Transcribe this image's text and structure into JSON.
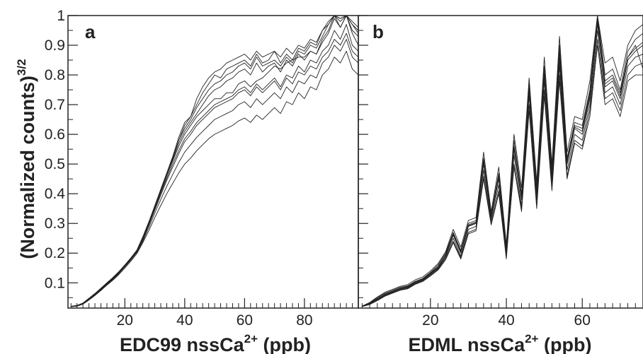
{
  "chart_data": [
    {
      "type": "line",
      "panel_label": "a",
      "xlabel_main": "EDC99 nssCa",
      "xlabel_sup": "2+",
      "xlabel_tail": " (ppb)",
      "ylabel_main": "(Normalized counts)",
      "ylabel_sup": "3/2",
      "xlim": [
        1,
        98
      ],
      "ylim": [
        0.015,
        1.0
      ],
      "x_ticks": [
        20,
        40,
        60,
        80
      ],
      "y_ticks": [
        0.1,
        0.2,
        0.3,
        0.4,
        0.5,
        0.6,
        0.7,
        0.8,
        0.9,
        1
      ],
      "grid": false,
      "legend": "none",
      "line_color": "#222222",
      "x": [
        2,
        4,
        6,
        8,
        10,
        12,
        14,
        16,
        18,
        20,
        22,
        24,
        26,
        28,
        30,
        32,
        34,
        36,
        38,
        40,
        42,
        44,
        46,
        48,
        50,
        52,
        54,
        56,
        58,
        60,
        62,
        64,
        66,
        68,
        70,
        72,
        74,
        76,
        78,
        80,
        82,
        84,
        86,
        88,
        90,
        92,
        94,
        96,
        98
      ],
      "series": [
        {
          "values": [
            0.02,
            0.022,
            0.03,
            0.045,
            0.06,
            0.077,
            0.095,
            0.112,
            0.132,
            0.155,
            0.178,
            0.203,
            0.245,
            0.295,
            0.35,
            0.405,
            0.46,
            0.51,
            0.56,
            0.6,
            0.63,
            0.66,
            0.68,
            0.7,
            0.72,
            0.72,
            0.74,
            0.74,
            0.77,
            0.78,
            0.76,
            0.78,
            0.79,
            0.81,
            0.83,
            0.82,
            0.84,
            0.85,
            0.86,
            0.86,
            0.88,
            0.87,
            0.92,
            0.95,
            1.0,
            0.96,
            1.0,
            0.94,
            0.9
          ]
        },
        {
          "values": [
            0.02,
            0.022,
            0.03,
            0.046,
            0.062,
            0.08,
            0.098,
            0.115,
            0.135,
            0.158,
            0.182,
            0.207,
            0.25,
            0.3,
            0.355,
            0.41,
            0.465,
            0.52,
            0.58,
            0.62,
            0.65,
            0.69,
            0.72,
            0.75,
            0.77,
            0.78,
            0.8,
            0.81,
            0.83,
            0.84,
            0.82,
            0.86,
            0.83,
            0.84,
            0.85,
            0.83,
            0.86,
            0.84,
            0.88,
            0.87,
            0.9,
            0.89,
            0.93,
            0.97,
            1.0,
            0.98,
            1.0,
            0.97,
            0.95
          ]
        },
        {
          "values": [
            0.021,
            0.024,
            0.032,
            0.048,
            0.064,
            0.082,
            0.1,
            0.118,
            0.138,
            0.16,
            0.184,
            0.21,
            0.255,
            0.305,
            0.36,
            0.415,
            0.47,
            0.525,
            0.59,
            0.64,
            0.66,
            0.7,
            0.74,
            0.77,
            0.8,
            0.79,
            0.82,
            0.83,
            0.84,
            0.85,
            0.83,
            0.87,
            0.84,
            0.85,
            0.88,
            0.84,
            0.87,
            0.85,
            0.89,
            0.88,
            0.91,
            0.9,
            0.95,
            0.98,
            1.0,
            0.99,
            1.0,
            0.98,
            0.96
          ]
        },
        {
          "values": [
            0.02,
            0.023,
            0.031,
            0.047,
            0.063,
            0.081,
            0.099,
            0.116,
            0.136,
            0.159,
            0.183,
            0.208,
            0.252,
            0.302,
            0.357,
            0.412,
            0.467,
            0.515,
            0.57,
            0.61,
            0.64,
            0.67,
            0.7,
            0.73,
            0.75,
            0.76,
            0.78,
            0.79,
            0.81,
            0.82,
            0.8,
            0.84,
            0.81,
            0.83,
            0.84,
            0.81,
            0.85,
            0.83,
            0.87,
            0.85,
            0.88,
            0.87,
            0.91,
            0.94,
            0.99,
            0.96,
            1.0,
            0.95,
            0.93
          ]
        },
        {
          "values": [
            0.02,
            0.022,
            0.03,
            0.045,
            0.061,
            0.079,
            0.097,
            0.114,
            0.134,
            0.157,
            0.18,
            0.205,
            0.247,
            0.297,
            0.35,
            0.402,
            0.452,
            0.5,
            0.545,
            0.585,
            0.61,
            0.64,
            0.66,
            0.68,
            0.7,
            0.71,
            0.72,
            0.73,
            0.75,
            0.76,
            0.74,
            0.77,
            0.75,
            0.77,
            0.79,
            0.76,
            0.8,
            0.79,
            0.83,
            0.81,
            0.85,
            0.84,
            0.88,
            0.9,
            0.95,
            0.92,
            0.97,
            0.9,
            0.88
          ]
        },
        {
          "values": [
            0.02,
            0.022,
            0.029,
            0.044,
            0.059,
            0.076,
            0.094,
            0.111,
            0.131,
            0.154,
            0.177,
            0.202,
            0.24,
            0.285,
            0.335,
            0.38,
            0.425,
            0.465,
            0.505,
            0.54,
            0.565,
            0.59,
            0.61,
            0.63,
            0.65,
            0.66,
            0.67,
            0.68,
            0.7,
            0.71,
            0.69,
            0.72,
            0.7,
            0.72,
            0.74,
            0.72,
            0.76,
            0.74,
            0.78,
            0.77,
            0.8,
            0.79,
            0.84,
            0.86,
            0.9,
            0.88,
            0.92,
            0.86,
            0.84
          ]
        },
        {
          "values": [
            0.02,
            0.021,
            0.028,
            0.042,
            0.057,
            0.074,
            0.092,
            0.109,
            0.128,
            0.15,
            0.173,
            0.198,
            0.235,
            0.275,
            0.32,
            0.36,
            0.4,
            0.435,
            0.47,
            0.5,
            0.52,
            0.545,
            0.565,
            0.585,
            0.6,
            0.61,
            0.62,
            0.63,
            0.645,
            0.655,
            0.64,
            0.665,
            0.65,
            0.67,
            0.69,
            0.67,
            0.71,
            0.7,
            0.74,
            0.72,
            0.76,
            0.75,
            0.8,
            0.82,
            0.86,
            0.84,
            0.88,
            0.82,
            0.8
          ]
        },
        {
          "values": [
            0.021,
            0.023,
            0.031,
            0.047,
            0.063,
            0.081,
            0.1,
            0.117,
            0.137,
            0.16,
            0.184,
            0.209,
            0.253,
            0.303,
            0.358,
            0.413,
            0.468,
            0.52,
            0.58,
            0.63,
            0.66,
            0.72,
            0.76,
            0.79,
            0.81,
            0.82,
            0.84,
            0.85,
            0.86,
            0.87,
            0.85,
            0.88,
            0.86,
            0.87,
            0.88,
            0.86,
            0.89,
            0.87,
            0.9,
            0.89,
            0.92,
            0.91,
            0.95,
            0.97,
            1.0,
            0.99,
            1.0,
            0.97,
            0.94
          ]
        },
        {
          "values": [
            0.02,
            0.022,
            0.03,
            0.045,
            0.06,
            0.078,
            0.096,
            0.113,
            0.133,
            0.156,
            0.179,
            0.204,
            0.245,
            0.293,
            0.345,
            0.395,
            0.445,
            0.49,
            0.535,
            0.575,
            0.6,
            0.63,
            0.65,
            0.67,
            0.69,
            0.7,
            0.71,
            0.72,
            0.74,
            0.75,
            0.73,
            0.76,
            0.74,
            0.76,
            0.78,
            0.75,
            0.79,
            0.77,
            0.81,
            0.8,
            0.83,
            0.82,
            0.86,
            0.88,
            0.92,
            0.9,
            0.94,
            0.88,
            0.86
          ]
        }
      ]
    },
    {
      "type": "line",
      "panel_label": "b",
      "xlabel_main": "EDML nssCa",
      "xlabel_sup": "2+",
      "xlabel_tail": " (ppb)",
      "xlim": [
        1,
        76
      ],
      "ylim": [
        0.015,
        1.0
      ],
      "x_ticks": [
        20,
        40,
        60
      ],
      "grid": false,
      "legend": "none",
      "line_color": "#222222",
      "x": [
        2,
        4,
        6,
        8,
        10,
        12,
        14,
        16,
        18,
        20,
        22,
        24,
        26,
        28,
        30,
        32,
        34,
        36,
        38,
        40,
        42,
        44,
        46,
        48,
        50,
        52,
        54,
        56,
        58,
        60,
        62,
        64,
        66,
        68,
        70,
        72,
        74,
        76
      ],
      "series": [
        {
          "values": [
            0.02,
            0.03,
            0.045,
            0.06,
            0.07,
            0.08,
            0.085,
            0.1,
            0.11,
            0.13,
            0.15,
            0.19,
            0.26,
            0.2,
            0.29,
            0.3,
            0.5,
            0.32,
            0.45,
            0.2,
            0.55,
            0.38,
            0.75,
            0.4,
            0.8,
            0.45,
            0.85,
            0.5,
            0.62,
            0.6,
            0.72,
            0.98,
            0.76,
            0.78,
            0.72,
            0.85,
            0.88,
            0.9
          ]
        },
        {
          "values": [
            0.021,
            0.032,
            0.05,
            0.065,
            0.075,
            0.085,
            0.09,
            0.105,
            0.115,
            0.135,
            0.16,
            0.2,
            0.27,
            0.21,
            0.3,
            0.31,
            0.52,
            0.33,
            0.47,
            0.22,
            0.58,
            0.4,
            0.77,
            0.42,
            0.83,
            0.48,
            0.9,
            0.52,
            0.64,
            0.63,
            0.75,
            1.0,
            0.8,
            0.82,
            0.75,
            0.88,
            0.92,
            0.94
          ]
        },
        {
          "values": [
            0.02,
            0.029,
            0.043,
            0.058,
            0.068,
            0.078,
            0.083,
            0.098,
            0.108,
            0.128,
            0.148,
            0.185,
            0.25,
            0.19,
            0.28,
            0.29,
            0.48,
            0.31,
            0.43,
            0.19,
            0.53,
            0.36,
            0.73,
            0.38,
            0.78,
            0.44,
            0.83,
            0.48,
            0.6,
            0.58,
            0.7,
            0.95,
            0.74,
            0.76,
            0.7,
            0.83,
            0.86,
            0.87
          ]
        },
        {
          "values": [
            0.022,
            0.034,
            0.052,
            0.068,
            0.078,
            0.088,
            0.094,
            0.11,
            0.12,
            0.14,
            0.165,
            0.205,
            0.28,
            0.22,
            0.31,
            0.32,
            0.54,
            0.34,
            0.49,
            0.23,
            0.6,
            0.42,
            0.79,
            0.44,
            0.86,
            0.5,
            0.93,
            0.54,
            0.66,
            0.65,
            0.78,
            1.0,
            0.84,
            0.86,
            0.78,
            0.9,
            0.95,
            0.97
          ]
        },
        {
          "values": [
            0.02,
            0.028,
            0.041,
            0.056,
            0.066,
            0.076,
            0.081,
            0.096,
            0.106,
            0.125,
            0.145,
            0.18,
            0.24,
            0.185,
            0.27,
            0.28,
            0.46,
            0.3,
            0.41,
            0.18,
            0.5,
            0.35,
            0.7,
            0.36,
            0.75,
            0.42,
            0.8,
            0.46,
            0.58,
            0.56,
            0.68,
            0.92,
            0.72,
            0.74,
            0.68,
            0.8,
            0.83,
            0.84
          ]
        },
        {
          "values": [
            0.021,
            0.031,
            0.047,
            0.062,
            0.072,
            0.082,
            0.088,
            0.103,
            0.113,
            0.133,
            0.155,
            0.195,
            0.265,
            0.205,
            0.295,
            0.305,
            0.51,
            0.325,
            0.46,
            0.21,
            0.56,
            0.39,
            0.76,
            0.41,
            0.82,
            0.47,
            0.88,
            0.51,
            0.63,
            0.62,
            0.74,
            0.99,
            0.78,
            0.8,
            0.74,
            0.86,
            0.9,
            0.82
          ]
        },
        {
          "values": [
            0.02,
            0.03,
            0.046,
            0.061,
            0.071,
            0.081,
            0.086,
            0.101,
            0.111,
            0.131,
            0.152,
            0.19,
            0.262,
            0.202,
            0.292,
            0.302,
            0.505,
            0.322,
            0.455,
            0.205,
            0.555,
            0.385,
            0.755,
            0.405,
            0.81,
            0.455,
            0.86,
            0.505,
            0.625,
            0.61,
            0.73,
            0.97,
            0.77,
            0.79,
            0.73,
            0.86,
            0.89,
            0.91
          ]
        },
        {
          "values": [
            0.02,
            0.027,
            0.04,
            0.055,
            0.065,
            0.075,
            0.08,
            0.095,
            0.105,
            0.123,
            0.143,
            0.178,
            0.235,
            0.18,
            0.265,
            0.275,
            0.45,
            0.295,
            0.4,
            0.19,
            0.49,
            0.34,
            0.68,
            0.35,
            0.73,
            0.41,
            0.78,
            0.45,
            0.57,
            0.55,
            0.66,
            0.9,
            0.7,
            0.72,
            0.66,
            0.78,
            0.8,
            0.8
          ]
        }
      ]
    }
  ]
}
